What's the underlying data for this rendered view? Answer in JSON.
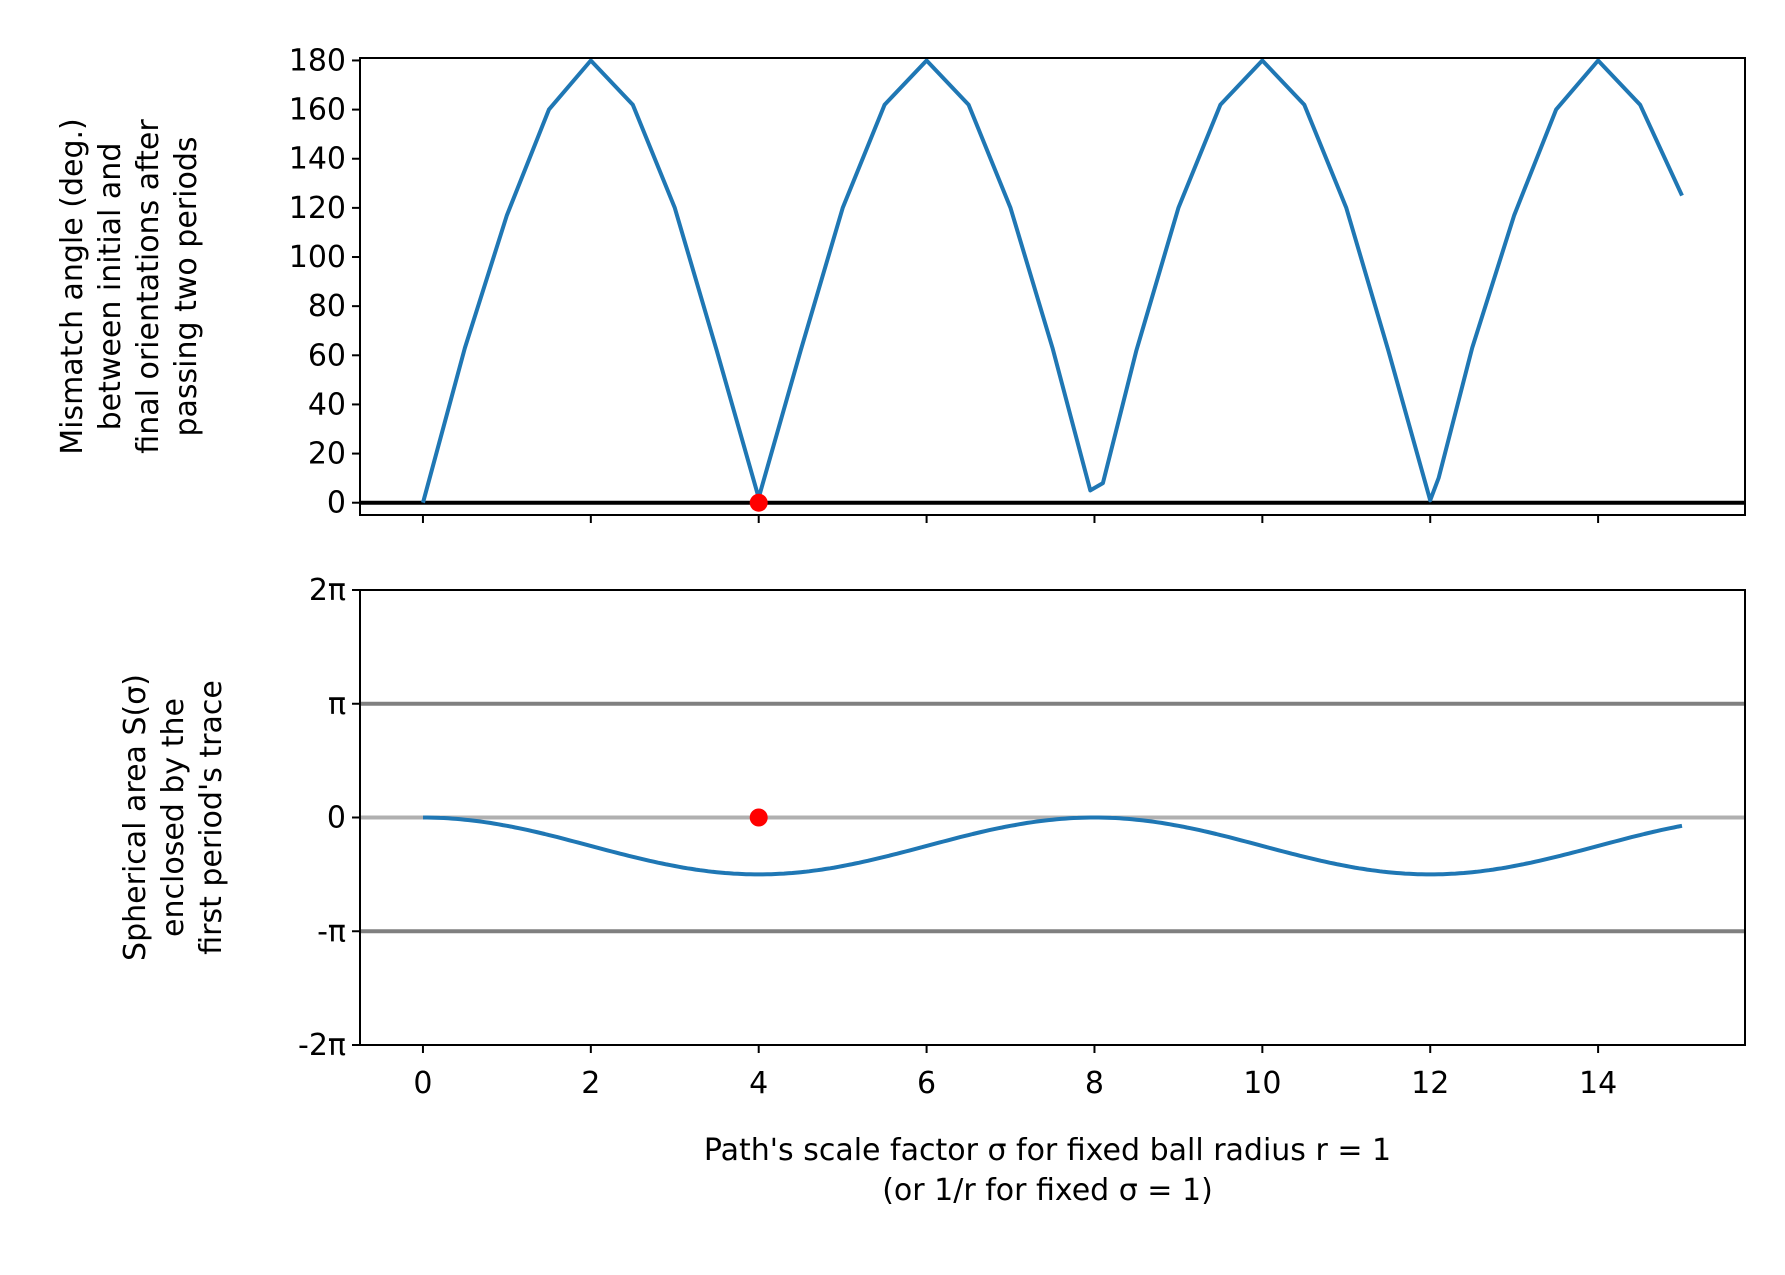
{
  "colors": {
    "series": "#1f77b4",
    "marker": "#ff0000",
    "zero_line_top": "#000000",
    "pi_lines": "#808080",
    "zero_line_bottom": "#b0b0b0"
  },
  "chart_data": [
    {
      "type": "line",
      "ylabel": "Mismatch angle (deg.)\nbetween initial and\nfinal orientations after\npassing two periods",
      "xlim": [
        -0.75,
        15.75
      ],
      "ylim": [
        -5,
        181
      ],
      "yticks": [
        0,
        20,
        40,
        60,
        80,
        100,
        120,
        140,
        160,
        180
      ],
      "ytick_labels": [
        "0",
        "20",
        "40",
        "60",
        "80",
        "100",
        "120",
        "140",
        "160",
        "180"
      ],
      "xticks": [
        0,
        2,
        4,
        6,
        8,
        10,
        12,
        14
      ],
      "xtick_labels_visible": false,
      "grid": false,
      "hlines": [
        {
          "y": 0,
          "color": "#000000"
        }
      ],
      "series": [
        {
          "x": [
            0,
            0.5,
            1,
            1.5,
            2,
            2.5,
            3,
            3.5,
            4,
            4.5,
            5,
            5.5,
            6,
            6.5,
            7,
            7.5,
            7.95,
            8.1,
            8.5,
            9,
            9.5,
            10,
            10.5,
            11,
            11.5,
            12,
            12.1,
            12.5,
            13,
            13.5,
            14,
            14.5,
            15
          ],
          "y": [
            0,
            63,
            117,
            160,
            180,
            162,
            120,
            62,
            2,
            62,
            120,
            162,
            180,
            162,
            120,
            63,
            5,
            8,
            62,
            120,
            162,
            180,
            162,
            120,
            62,
            1,
            10,
            63,
            117,
            160,
            180,
            162,
            125
          ]
        }
      ],
      "points": [
        {
          "x": 4,
          "y": 0
        }
      ]
    },
    {
      "type": "line",
      "ylabel": "Spherical area S(σ)\nenclosed by the\nfirst period's trace",
      "xlabel": "Path's scale factor σ for fixed ball radius r = 1\n(or 1/r for fixed σ = 1)",
      "xlim": [
        -0.75,
        15.75
      ],
      "ylim": [
        -6.2832,
        6.2832
      ],
      "yticks": [
        -6.2832,
        -3.1416,
        0,
        3.1416,
        6.2832
      ],
      "ytick_labels": [
        "-2π",
        "-π",
        "0",
        "π",
        "2π"
      ],
      "xticks": [
        0,
        2,
        4,
        6,
        8,
        10,
        12,
        14
      ],
      "xtick_labels": [
        "0",
        "2",
        "4",
        "6",
        "8",
        "10",
        "12",
        "14"
      ],
      "grid": false,
      "hlines": [
        {
          "y": 3.1416,
          "color": "#808080"
        },
        {
          "y": -3.1416,
          "color": "#808080"
        },
        {
          "y": 0,
          "color": "#b0b0b0"
        }
      ],
      "curve": {
        "form": "-A*(1-cos(pi*x/4))/2",
        "amplitude": 1.5708,
        "x_from": 0,
        "x_to": 15
      },
      "points": [
        {
          "x": 4,
          "y": 0
        }
      ]
    }
  ]
}
